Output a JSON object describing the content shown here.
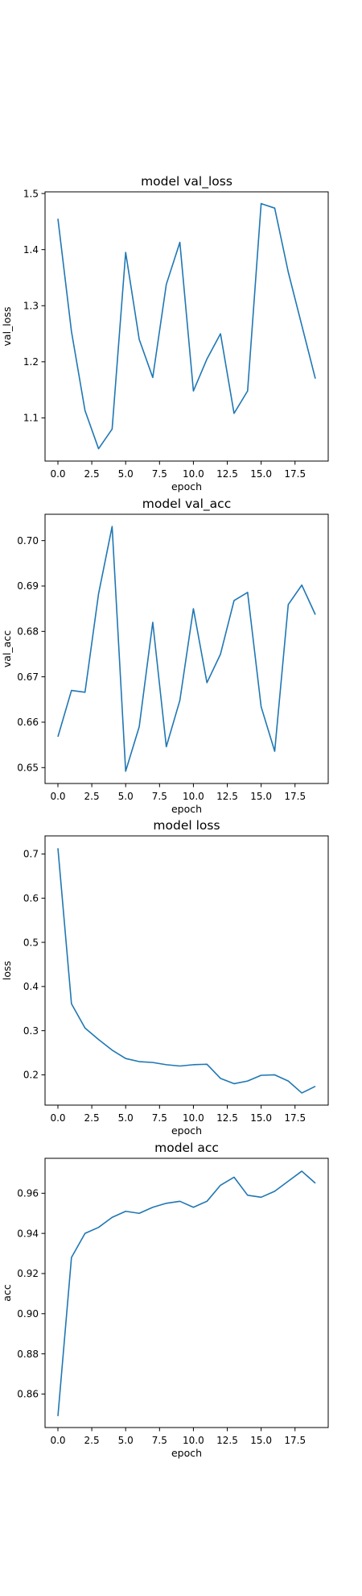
{
  "series_color": "#1f77b4",
  "chart_data": [
    {
      "type": "line",
      "title": "model val_loss",
      "xlabel": "epoch",
      "ylabel": "val_loss",
      "xlim": [
        -0.95,
        19.95
      ],
      "ylim": [
        1.023,
        1.503
      ],
      "xticks": [
        0.0,
        2.5,
        5.0,
        7.5,
        10.0,
        12.5,
        15.0,
        17.5
      ],
      "xtick_labels": [
        "0.0",
        "2.5",
        "5.0",
        "7.5",
        "10.0",
        "12.5",
        "15.0",
        "17.5"
      ],
      "yticks": [
        1.1,
        1.2,
        1.3,
        1.4,
        1.5
      ],
      "ytick_labels": [
        "1.1",
        "1.2",
        "1.3",
        "1.4",
        "1.5"
      ],
      "grid": false,
      "series": [
        {
          "x": [
            0,
            1,
            2,
            3,
            4,
            5,
            6,
            7,
            8,
            9,
            10,
            11,
            12,
            13,
            14,
            15,
            16,
            17,
            18,
            19
          ],
          "values": [
            1.455,
            1.254,
            1.113,
            1.045,
            1.08,
            1.395,
            1.24,
            1.172,
            1.338,
            1.413,
            1.148,
            1.205,
            1.25,
            1.108,
            1.148,
            1.482,
            1.474,
            1.36,
            1.265,
            1.17
          ]
        }
      ]
    },
    {
      "type": "line",
      "title": "model val_acc",
      "xlabel": "epoch",
      "ylabel": "val_acc",
      "xlim": [
        -0.95,
        19.95
      ],
      "ylim": [
        0.6465,
        0.7058
      ],
      "xticks": [
        0.0,
        2.5,
        5.0,
        7.5,
        10.0,
        12.5,
        15.0,
        17.5
      ],
      "xtick_labels": [
        "0.0",
        "2.5",
        "5.0",
        "7.5",
        "10.0",
        "12.5",
        "15.0",
        "17.5"
      ],
      "yticks": [
        0.65,
        0.66,
        0.67,
        0.68,
        0.69,
        0.7
      ],
      "ytick_labels": [
        "0.65",
        "0.66",
        "0.67",
        "0.68",
        "0.69",
        "0.70"
      ],
      "grid": false,
      "series": [
        {
          "x": [
            0,
            1,
            2,
            3,
            4,
            5,
            6,
            7,
            8,
            9,
            10,
            11,
            12,
            13,
            14,
            15,
            16,
            17,
            18,
            19
          ],
          "values": [
            0.6568,
            0.667,
            0.6666,
            0.6883,
            0.7031,
            0.6492,
            0.659,
            0.682,
            0.6546,
            0.6648,
            0.685,
            0.6687,
            0.675,
            0.6868,
            0.6886,
            0.6634,
            0.6536,
            0.6859,
            0.6902,
            0.6837
          ]
        }
      ]
    },
    {
      "type": "line",
      "title": "model loss",
      "xlabel": "epoch",
      "ylabel": "loss",
      "xlim": [
        -0.95,
        19.95
      ],
      "ylim": [
        0.1315,
        0.741
      ],
      "xticks": [
        0.0,
        2.5,
        5.0,
        7.5,
        10.0,
        12.5,
        15.0,
        17.5
      ],
      "xtick_labels": [
        "0.0",
        "2.5",
        "5.0",
        "7.5",
        "10.0",
        "12.5",
        "15.0",
        "17.5"
      ],
      "yticks": [
        0.2,
        0.3,
        0.4,
        0.5,
        0.6,
        0.7
      ],
      "ytick_labels": [
        "0.2",
        "0.3",
        "0.4",
        "0.5",
        "0.6",
        "0.7"
      ],
      "grid": false,
      "series": [
        {
          "x": [
            0,
            1,
            2,
            3,
            4,
            5,
            6,
            7,
            8,
            9,
            10,
            11,
            12,
            13,
            14,
            15,
            16,
            17,
            18,
            19
          ],
          "values": [
            0.713,
            0.361,
            0.306,
            0.28,
            0.256,
            0.237,
            0.23,
            0.228,
            0.223,
            0.22,
            0.223,
            0.224,
            0.192,
            0.18,
            0.186,
            0.199,
            0.2,
            0.186,
            0.159,
            0.174
          ]
        }
      ]
    },
    {
      "type": "line",
      "title": "model acc",
      "xlabel": "epoch",
      "ylabel": "acc",
      "xlim": [
        -0.95,
        19.95
      ],
      "ylim": [
        0.8433,
        0.9774
      ],
      "xticks": [
        0.0,
        2.5,
        5.0,
        7.5,
        10.0,
        12.5,
        15.0,
        17.5
      ],
      "xtick_labels": [
        "0.0",
        "2.5",
        "5.0",
        "7.5",
        "10.0",
        "12.5",
        "15.0",
        "17.5"
      ],
      "yticks": [
        0.86,
        0.88,
        0.9,
        0.92,
        0.94,
        0.96
      ],
      "ytick_labels": [
        "0.86",
        "0.88",
        "0.90",
        "0.92",
        "0.94",
        "0.96"
      ],
      "grid": false,
      "series": [
        {
          "x": [
            0,
            1,
            2,
            3,
            4,
            5,
            6,
            7,
            8,
            9,
            10,
            11,
            12,
            13,
            14,
            15,
            16,
            17,
            18,
            19
          ],
          "values": [
            0.849,
            0.928,
            0.94,
            0.943,
            0.948,
            0.951,
            0.95,
            0.953,
            0.955,
            0.956,
            0.953,
            0.956,
            0.964,
            0.968,
            0.959,
            0.958,
            0.961,
            0.966,
            0.971,
            0.965
          ]
        }
      ]
    }
  ]
}
